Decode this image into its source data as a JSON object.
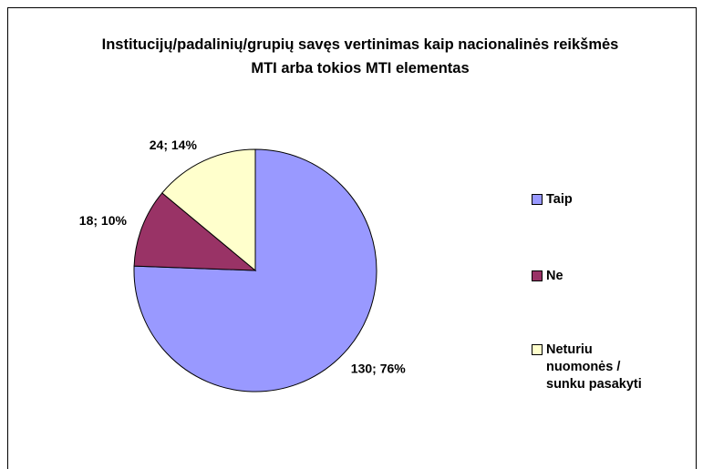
{
  "chart_data": {
    "type": "pie",
    "title": "Institucijų/padalinių/grupių savęs vertinimas kaip nacionalinės reikšmės MTI arba tokios MTI elementas",
    "categories": [
      "Taip",
      "Ne",
      "Neturiu nuomonės / sunku pasakyti"
    ],
    "values": [
      130,
      18,
      24
    ],
    "value_labels": [
      "130; 76%",
      "18; 10%",
      "24; 14%"
    ],
    "colors": [
      "#9999ff",
      "#993366",
      "#ffffcc"
    ],
    "legend": "right"
  }
}
